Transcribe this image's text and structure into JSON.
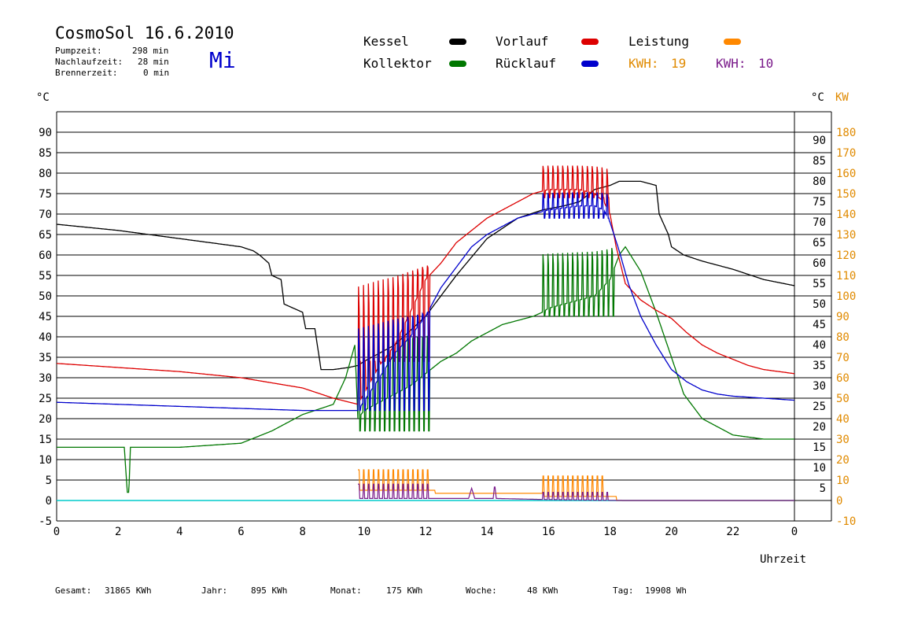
{
  "header": {
    "title": "CosmoSol 16.6.2010",
    "day": "Mi",
    "info": [
      {
        "label": "Pumpzeit:",
        "value": "298 min"
      },
      {
        "label": "Nachlaufzeit:",
        "value": "28 min"
      },
      {
        "label": "Brennerzeit:",
        "value": "0 min"
      }
    ]
  },
  "legend": {
    "kessel": "Kessel",
    "kollektor": "Kollektor",
    "vorlauf": "Vorlauf",
    "ruecklauf": "Rücklauf",
    "leistung": "Leistung",
    "kwh1_label": "KWH:",
    "kwh1_value": "19",
    "kwh2_label": "KWH:",
    "kwh2_value": "10"
  },
  "footer": {
    "gesamt_label": "Gesamt:",
    "gesamt_value": "31865 KWh",
    "jahr_label": "Jahr:",
    "jahr_value": "895 KWh",
    "monat_label": "Monat:",
    "monat_value": "175 KWh",
    "woche_label": "Woche:",
    "woche_value": "48 KWh",
    "tag_label": "Tag:",
    "tag_value": "19908 Wh"
  },
  "colors": {
    "kessel": "#000000",
    "kollektor": "#007700",
    "vorlauf": "#dd0000",
    "ruecklauf": "#0000cc",
    "leistung": "#ff8800",
    "leistung2": "#7a1a8a",
    "baseline": "#00cccc",
    "kw_axis": "#e08a00",
    "day": "#0000cc"
  },
  "chart_data": {
    "type": "line",
    "title": "",
    "xlabel": "Uhrzeit",
    "ylabel_left": "°C",
    "ylabel_right_c": "°C",
    "ylabel_right_kw": "KW",
    "xlim": [
      0,
      24
    ],
    "ylim": [
      -5,
      95
    ],
    "kw_lim": [
      -10,
      190
    ],
    "x_ticks": [
      "0",
      "2",
      "4",
      "6",
      "8",
      "10",
      "12",
      "14",
      "16",
      "18",
      "20",
      "22",
      "0"
    ],
    "y_ticks_left": [
      "90",
      "85",
      "80",
      "75",
      "70",
      "65",
      "60",
      "55",
      "50",
      "45",
      "40",
      "35",
      "30",
      "25",
      "20",
      "15",
      "10",
      "5",
      "0",
      "-5"
    ],
    "y_ticks_right_c": [
      "90",
      "85",
      "80",
      "75",
      "70",
      "65",
      "60",
      "55",
      "50",
      "45",
      "40",
      "35",
      "30",
      "25",
      "20",
      "15",
      "10",
      "5"
    ],
    "y_ticks_right_kw": [
      "180",
      "170",
      "160",
      "150",
      "140",
      "130",
      "120",
      "110",
      "100",
      "90",
      "80",
      "70",
      "60",
      "50",
      "40",
      "30",
      "20",
      "10",
      "0",
      "-10"
    ],
    "series": [
      {
        "key": "kessel",
        "name": "Kessel",
        "x": [
          0,
          2,
          4,
          6,
          6.4,
          6.6,
          6.9,
          7.0,
          7.3,
          7.4,
          8.0,
          8.1,
          8.4,
          8.6,
          8.7,
          9.0,
          9.5,
          9.8,
          10.0,
          11.0,
          12.0,
          13.0,
          14.0,
          15.0,
          15.8,
          16.5,
          17.0,
          17.5,
          18.0,
          18.3,
          19.0,
          19.5,
          19.6,
          19.9,
          20.0,
          20.4,
          21.0,
          22.0,
          23.0,
          24.0
        ],
        "y": [
          67.5,
          66,
          64,
          62,
          61,
          60,
          58,
          55,
          54,
          48,
          46,
          42,
          42,
          32,
          32,
          32,
          32.5,
          33,
          34,
          38,
          45,
          55,
          64,
          69,
          71,
          72,
          73,
          76,
          77,
          78,
          78,
          77,
          70,
          65,
          62,
          60,
          58.5,
          56.5,
          54,
          52.5
        ]
      },
      {
        "key": "kollektor",
        "name": "Kollektor",
        "x": [
          0,
          2,
          2.2,
          2.3,
          2.35,
          2.4,
          2.5,
          3,
          4,
          5,
          6,
          7,
          8,
          9,
          9.4,
          9.7,
          9.8,
          10,
          10.5,
          11,
          11.5,
          12,
          12.5,
          13,
          13.5,
          14,
          14.5,
          15,
          15.5,
          15.8,
          16,
          16.5,
          17,
          17.5,
          18,
          18.3,
          18.5,
          19,
          19.5,
          20,
          20.4,
          21,
          22,
          23,
          24
        ],
        "y": [
          13,
          13,
          13,
          2,
          2,
          13,
          13,
          13,
          13,
          13.5,
          14,
          17,
          21,
          23.5,
          30,
          38,
          20,
          22,
          24,
          26,
          28,
          31,
          34,
          36,
          39,
          41,
          43,
          44,
          45,
          46,
          47,
          48,
          49,
          50,
          54,
          60,
          62,
          56,
          46,
          35,
          26,
          20,
          16,
          15,
          15
        ],
        "oscillations": [
          {
            "from": 9.8,
            "to": 12.2,
            "low": 17,
            "high": 42
          },
          {
            "from": 15.8,
            "to": 18.2,
            "low": 45,
            "high": 63
          }
        ]
      },
      {
        "key": "vorlauf",
        "name": "Vorlauf",
        "x": [
          0,
          2,
          4,
          6,
          8,
          9,
          9.8,
          10.5,
          11,
          12,
          12.5,
          13,
          13.5,
          14,
          14.5,
          15,
          15.5,
          16,
          16.5,
          17,
          17.5,
          17.8,
          18,
          18.2,
          18.5,
          19,
          19.5,
          20,
          20.5,
          21,
          21.5,
          22,
          22.5,
          23,
          24
        ],
        "y": [
          33.5,
          32.5,
          31.5,
          30,
          27.5,
          25,
          23.5,
          33,
          38,
          54,
          58,
          63,
          66,
          69,
          71,
          73,
          75,
          76,
          76,
          76,
          75,
          73,
          70,
          62,
          53,
          49,
          46.5,
          44.5,
          41,
          38,
          36,
          34.5,
          33,
          32,
          31
        ],
        "oscillations": [
          {
            "from": 9.8,
            "to": 12.2,
            "low": 34,
            "high": 58
          },
          {
            "from": 15.8,
            "to": 18.0,
            "low": 74,
            "high": 83
          }
        ]
      },
      {
        "key": "ruecklauf",
        "name": "Rücklauf",
        "x": [
          0,
          2,
          4,
          6,
          8,
          9.8,
          10.5,
          11,
          11.5,
          12,
          12.5,
          13,
          13.5,
          14,
          14.5,
          15,
          15.5,
          16,
          16.5,
          17,
          17.5,
          17.8,
          18,
          18.3,
          18.6,
          19,
          19.5,
          20,
          20.5,
          21,
          21.5,
          22,
          23,
          24
        ],
        "y": [
          24,
          23.5,
          23,
          22.5,
          22,
          22,
          30,
          36,
          40,
          45,
          52,
          57,
          62,
          65,
          67,
          69,
          70,
          71,
          71.5,
          72,
          72,
          71,
          68,
          61,
          53,
          45,
          38,
          32,
          29,
          27,
          26,
          25.5,
          25,
          24.5
        ],
        "oscillations": [
          {
            "from": 9.8,
            "to": 12.2,
            "low": 22,
            "high": 46
          },
          {
            "from": 15.8,
            "to": 18.0,
            "low": 69,
            "high": 76
          }
        ]
      }
    ],
    "power_series": [
      {
        "key": "leistung",
        "name": "Leistung",
        "unit": "KW",
        "x": [
          9.8,
          12.3,
          12.3,
          15.8,
          15.8,
          18.2,
          18.2,
          24
        ],
        "y": [
          5,
          5,
          3.5,
          3.5,
          2,
          2,
          0,
          0
        ],
        "spikes": [
          {
            "from": 9.8,
            "to": 12.2,
            "high": 15
          },
          {
            "from": 15.8,
            "to": 17.8,
            "high": 12
          }
        ]
      },
      {
        "key": "leistung2",
        "name": "",
        "unit": "KW",
        "x": [
          9.8,
          13.4,
          13.5,
          13.6,
          14.2,
          14.25,
          14.3,
          15.8,
          18.5,
          24
        ],
        "y": [
          1,
          1,
          6,
          1,
          1,
          8,
          1,
          0.5,
          0,
          0
        ],
        "spikes": [
          {
            "from": 9.8,
            "to": 12.2,
            "high": 8
          },
          {
            "from": 15.8,
            "to": 18.0,
            "high": 4
          }
        ]
      }
    ]
  }
}
